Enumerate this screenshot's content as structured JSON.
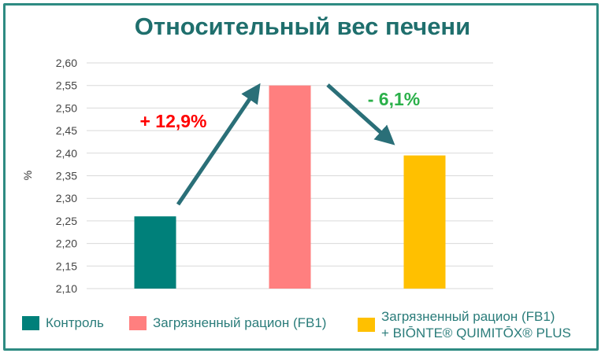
{
  "chart_data": {
    "type": "bar",
    "title": "Относительный вес печени",
    "ylabel": "%",
    "ylim": [
      2.1,
      2.6
    ],
    "yticks": [
      "2,60",
      "2,55",
      "2,50",
      "2,45",
      "2,40",
      "2,35",
      "2,30",
      "2,25",
      "2,20",
      "2,15",
      "2,10"
    ],
    "grid": true,
    "legend_position": "bottom",
    "series": [
      {
        "name": "Контроль",
        "value": 2.26,
        "color": "#00807a"
      },
      {
        "name": "Загрязненный рацион (FB1)",
        "value": 2.55,
        "color": "#ff7f7f"
      },
      {
        "name": "Загрязненный рацион (FB1)\n+ BIŌNTE® QUIMITŌX® PLUS",
        "value": 2.395,
        "color": "#ffc000"
      }
    ],
    "annotations": [
      {
        "text": "+ 12,9%",
        "color": "#ff0000"
      },
      {
        "text": "- 6,1%",
        "color": "#2bb04a"
      }
    ]
  }
}
